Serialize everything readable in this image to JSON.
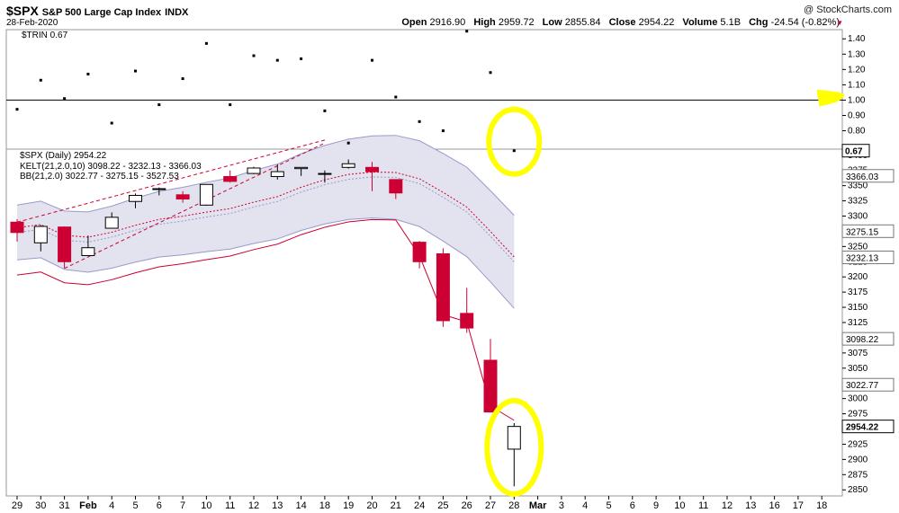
{
  "header": {
    "symbol": "$SPX",
    "name": "S&P 500 Large Cap Index",
    "exchange": "INDX",
    "date": "28-Feb-2020",
    "watermark": "@ StockCharts.com",
    "open_label": "Open",
    "open_value": "2916.90",
    "high_label": "High",
    "high_value": "2959.72",
    "low_label": "Low",
    "low_value": "2855.84",
    "close_label": "Close",
    "close_value": "2954.22",
    "volume_label": "Volume",
    "volume_value": "5.1B",
    "chg_label": "Chg",
    "chg_value": "-24.54 (-0.82%)",
    "chg_arrow": "▼"
  },
  "chart_data": {
    "type": "candlestick",
    "x_labels": [
      "29",
      "30",
      "31",
      "Feb",
      "4",
      "5",
      "6",
      "7",
      "10",
      "11",
      "12",
      "13",
      "14",
      "18",
      "19",
      "20",
      "21",
      "24",
      "25",
      "26",
      "27",
      "28",
      "Mar",
      "3",
      "4",
      "5",
      "6",
      "9",
      "10",
      "11",
      "12",
      "13",
      "16",
      "17",
      "18"
    ],
    "candles": [
      {
        "x": "29",
        "open": 3290,
        "high": 3295,
        "low": 3258,
        "close": 3273
      },
      {
        "x": "30",
        "open": 3256,
        "high": 3285,
        "low": 3242,
        "close": 3283
      },
      {
        "x": "31",
        "open": 3282,
        "high": 3283,
        "low": 3214,
        "close": 3225
      },
      {
        "x": "3",
        "open": 3235,
        "high": 3268,
        "low": 3235,
        "close": 3248
      },
      {
        "x": "4",
        "open": 3280,
        "high": 3306,
        "low": 3280,
        "close": 3298
      },
      {
        "x": "5",
        "open": 3324,
        "high": 3337,
        "low": 3313,
        "close": 3334
      },
      {
        "x": "6",
        "open": 3344,
        "high": 3347,
        "low": 3334,
        "close": 3345
      },
      {
        "x": "7",
        "open": 3335,
        "high": 3341,
        "low": 3322,
        "close": 3328
      },
      {
        "x": "10",
        "open": 3318,
        "high": 3352,
        "low": 3317,
        "close": 3352
      },
      {
        "x": "11",
        "open": 3365,
        "high": 3375,
        "low": 3355,
        "close": 3357
      },
      {
        "x": "12",
        "open": 3370,
        "high": 3381,
        "low": 3369,
        "close": 3379
      },
      {
        "x": "13",
        "open": 3365,
        "high": 3385,
        "low": 3360,
        "close": 3373
      },
      {
        "x": "14",
        "open": 3378,
        "high": 3380,
        "low": 3366,
        "close": 3380
      },
      {
        "x": "18",
        "open": 3370,
        "high": 3375,
        "low": 3355,
        "close": 3370
      },
      {
        "x": "19",
        "open": 3380,
        "high": 3393,
        "low": 3378,
        "close": 3386
      },
      {
        "x": "20",
        "open": 3380,
        "high": 3389,
        "low": 3341,
        "close": 3373
      },
      {
        "x": "21",
        "open": 3360,
        "high": 3360,
        "low": 3328,
        "close": 3338
      },
      {
        "x": "24",
        "open": 3257,
        "high": 3259,
        "low": 3214,
        "close": 3225
      },
      {
        "x": "25",
        "open": 3238,
        "high": 3247,
        "low": 3118,
        "close": 3128
      },
      {
        "x": "26",
        "open": 3140,
        "high": 3182,
        "low": 3108,
        "close": 3116
      },
      {
        "x": "27",
        "open": 3063,
        "high": 3098,
        "low": 2977,
        "close": 2978
      },
      {
        "x": "28",
        "open": 2916.9,
        "high": 2959.72,
        "low": 2855.84,
        "close": 2954.22
      }
    ],
    "series": [
      {
        "name": "KELT(21,2.0,10) 3098.22 - 3232.13 - 3366.03",
        "color": "#9999cc"
      },
      {
        "name": "BB(21,2.0) 3022.77 - 3275.15 - 3527.53",
        "color": "#cc0033"
      }
    ],
    "price_label": "$SPX (Daily) 2954.22",
    "ylim": [
      2840,
      3410
    ],
    "y_ticks": [
      "3400",
      "3375",
      "3350",
      "3325",
      "3300",
      "3275",
      "3250",
      "3225",
      "3200",
      "3175",
      "3150",
      "3125",
      "3100",
      "3075",
      "3050",
      "3025",
      "3000",
      "2975",
      "2950",
      "2925",
      "2900",
      "2875",
      "2850"
    ],
    "price_badges": [
      "3366.03",
      "3275.15",
      "3232.13",
      "3098.22",
      "3022.77",
      "2954.22"
    ],
    "trin": {
      "label": "$TRIN 0.67",
      "values": [
        0.94,
        1.13,
        1.01,
        1.17,
        0.85,
        1.19,
        0.97,
        1.14,
        1.37,
        0.97,
        1.29,
        1.26,
        1.27,
        0.93,
        0.72,
        1.26,
        1.02,
        0.86,
        0.8,
        1.45,
        1.18,
        0.67
      ],
      "ylim": [
        0.68,
        1.46
      ],
      "y_ticks": [
        "1.40",
        "1.30",
        "1.20",
        "1.10",
        "1.00",
        "0.90",
        "0.80"
      ],
      "reference": 1.0,
      "badge": "0.67"
    },
    "grid": false,
    "highlight_color": "#ffff00"
  }
}
